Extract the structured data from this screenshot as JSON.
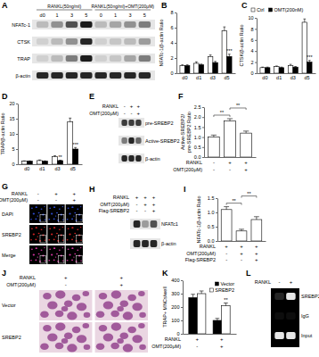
{
  "chart_data": [
    {
      "panel": "B",
      "type": "bar",
      "y_label": "NFATc-1/β-actin Ratio",
      "categories": [
        "d0",
        "d1",
        "d3",
        "d5"
      ],
      "series": [
        {
          "color": "#ffffff",
          "values": [
            1,
            1.3,
            2.2,
            5.6
          ],
          "errors": [
            0.1,
            0.2,
            0.2,
            0.5
          ]
        },
        {
          "color": "#000000",
          "values": [
            1,
            1.1,
            1.4,
            2.2
          ],
          "errors": [
            0.1,
            0.1,
            0.15,
            0.3
          ],
          "annotations": [
            null,
            null,
            null,
            "***"
          ]
        }
      ],
      "ylim": [
        0,
        8
      ],
      "yticks": [
        0,
        2,
        4,
        6,
        8
      ]
    },
    {
      "panel": "C",
      "type": "bar",
      "y_label": "CTSK/β-actin Ratio",
      "categories": [
        "d0",
        "d1",
        "d3",
        "d5"
      ],
      "series": [
        {
          "name": "Ctrl",
          "color": "#ffffff",
          "values": [
            1,
            1.2,
            1.4,
            9.2
          ],
          "errors": [
            0.1,
            0.1,
            0.2,
            0.6
          ]
        },
        {
          "name": "OMT(200nM)",
          "color": "#000000",
          "values": [
            1,
            1,
            1.1,
            2
          ],
          "errors": [
            0.1,
            0.1,
            0.1,
            0.3
          ],
          "annotations": [
            null,
            null,
            null,
            "***"
          ]
        }
      ],
      "ylim": [
        0,
        10
      ],
      "yticks": [
        0,
        2,
        4,
        6,
        8,
        10
      ],
      "legend": "top"
    },
    {
      "panel": "D",
      "type": "bar",
      "y_label": "TRAP/β-actin Ratio",
      "categories": [
        "d0",
        "d1",
        "d3",
        "d5"
      ],
      "series": [
        {
          "color": "#ffffff",
          "values": [
            1,
            1.2,
            2.5,
            14
          ],
          "errors": [
            0.1,
            0.2,
            0.3,
            1.2
          ]
        },
        {
          "color": "#000000",
          "values": [
            1,
            1,
            1.2,
            5
          ],
          "errors": [
            0.1,
            0.1,
            0.1,
            0.5
          ],
          "annotations": [
            null,
            null,
            "**",
            "***"
          ]
        }
      ],
      "ylim": [
        0,
        20
      ],
      "yticks": [
        0,
        5,
        10,
        15,
        20
      ]
    },
    {
      "panel": "F",
      "type": "bar",
      "y_label": [
        "Active-SREBP2/",
        "pre-SREBP2 Ratio"
      ],
      "categories": [
        null,
        null,
        null
      ],
      "values": [
        1,
        1.8,
        1.2
      ],
      "errors": [
        0.1,
        0.12,
        0.1
      ],
      "color": "#ffffff",
      "ylim": [
        0,
        2.5
      ],
      "yticks": [
        {
          "value": 0,
          "label": "0.0"
        },
        0.5,
        {
          "value": 1,
          "label": "1.0"
        },
        1.5,
        {
          "value": 2,
          "label": "2.0"
        },
        2.5
      ],
      "brackets": [
        {
          "from": 0,
          "to": 1,
          "label": "**"
        },
        {
          "from": 1,
          "to": 2,
          "label": "**"
        }
      ],
      "conditions": [
        {
          "label": "RANKL",
          "signs": [
            "-",
            "+",
            "+"
          ]
        },
        {
          "label": "OMT(200μM)",
          "signs": [
            "-",
            "-",
            "+"
          ]
        }
      ]
    },
    {
      "panel": "I",
      "type": "bar",
      "y_label": "NFATc-1/β-actin Ratio",
      "categories": [
        null,
        null,
        null
      ],
      "values": [
        1.1,
        0.35,
        0.75
      ],
      "errors": [
        0.1,
        0.06,
        0.1
      ],
      "color": "#ffffff",
      "ylim": [
        0,
        1.5
      ],
      "yticks": [
        {
          "value": 0,
          "label": "0.0"
        },
        0.5,
        {
          "value": 1,
          "label": "1.0"
        },
        1.5
      ],
      "brackets": [
        {
          "from": 0,
          "to": 1,
          "label": "**"
        },
        {
          "from": 1,
          "to": 2,
          "label": "**"
        }
      ],
      "conditions": [
        {
          "label": "RANKL",
          "signs": [
            "+",
            "+",
            "+"
          ]
        },
        {
          "label": "OMT(200μM)",
          "signs": [
            "-",
            "+",
            "+"
          ]
        },
        {
          "label": "Flag-SREBP2",
          "signs": [
            "-",
            "-",
            "+"
          ]
        }
      ]
    },
    {
      "panel": "K",
      "type": "bar",
      "y_label": "TRAP+ MNCs/well",
      "categories": [
        null,
        null
      ],
      "series": [
        {
          "name": "Vector",
          "color": "#000000",
          "values": [
            270,
            100
          ],
          "errors": [
            25,
            15
          ]
        },
        {
          "name": "SREBP2",
          "color": "#ffffff",
          "values": [
            300,
            210
          ],
          "errors": [
            20,
            20
          ],
          "annotations": [
            null,
            "**"
          ]
        }
      ],
      "ylim": [
        0,
        400
      ],
      "yticks": [
        0,
        100,
        200,
        300,
        400
      ],
      "legend": "top-right",
      "conditions": [
        {
          "label": "RANKL",
          "signs": [
            "+",
            "+"
          ]
        },
        {
          "label": "OMT(200μM)",
          "signs": [
            "-",
            "+"
          ]
        }
      ]
    }
  ],
  "blots": [
    {
      "panel": "A",
      "kind": "western",
      "column_headers": [
        {
          "label": "RANKL(50ng/ml)",
          "span": 4
        },
        {
          "label": "RANKL(50ng/ml)+OMT(200μM)",
          "span": 4
        }
      ],
      "lanes": [
        "d0",
        "1",
        "3",
        "5",
        "0",
        "1",
        "3",
        "5"
      ],
      "rows": [
        {
          "label": "NFATc-1",
          "bands": [
            0.2,
            0.4,
            0.7,
            0.95,
            0.2,
            0.3,
            0.4,
            0.5
          ]
        },
        {
          "label": "CTSK",
          "bands": [
            0.1,
            0.2,
            0.4,
            0.9,
            0.1,
            0.15,
            0.2,
            0.35
          ]
        },
        {
          "label": "TRAP",
          "bands": [
            0.1,
            0.2,
            0.5,
            0.95,
            0.1,
            0.15,
            0.3,
            0.5
          ]
        },
        {
          "label": "β-actin",
          "bands": [
            0.9,
            0.9,
            0.9,
            0.9,
            0.9,
            0.9,
            0.9,
            0.9
          ]
        }
      ]
    },
    {
      "panel": "E",
      "kind": "western",
      "conditions": [
        {
          "label": "RANKL",
          "signs": [
            "-",
            "+",
            "+"
          ]
        },
        {
          "label": "OMT(200μM)",
          "signs": [
            "-",
            "-",
            "+"
          ]
        }
      ],
      "rows": [
        {
          "label": "pre-SREBP2",
          "bands": [
            0.8,
            0.8,
            0.8
          ]
        },
        {
          "label": "Active-SREBP2",
          "bands": [
            0.5,
            0.9,
            0.6
          ]
        },
        {
          "label": "β-actin",
          "bands": [
            0.9,
            0.9,
            0.9
          ]
        }
      ]
    },
    {
      "panel": "H",
      "kind": "western",
      "conditions": [
        {
          "label": "RANKL",
          "signs": [
            "+",
            "+",
            "+"
          ]
        },
        {
          "label": "OMT(200μM)",
          "signs": [
            "-",
            "+",
            "+"
          ]
        },
        {
          "label": "Flag-SREBP2",
          "signs": [
            "-",
            "-",
            "+"
          ]
        }
      ],
      "rows": [
        {
          "label": "NFATc1",
          "bands": [
            0.9,
            0.35,
            0.7
          ]
        },
        {
          "label": "β-actin",
          "bands": [
            0.9,
            0.9,
            0.9
          ]
        }
      ]
    },
    {
      "panel": "L",
      "kind": "gel",
      "conditions": [
        {
          "label": "RANKL",
          "signs": [
            "-",
            "+"
          ]
        }
      ],
      "rows": [
        {
          "label": "SREBP2",
          "bands": [
            0.15,
            0.9
          ]
        },
        {
          "label": "IgG",
          "bands": [
            0.05,
            0.05
          ]
        },
        {
          "label": "Input",
          "bands": [
            0.9,
            0.9
          ]
        }
      ]
    }
  ],
  "images": [
    {
      "panel": "G",
      "conditions": [
        {
          "label": "RANKL",
          "signs": [
            "-",
            "+",
            "+"
          ]
        },
        {
          "label": "OMT(200μM)",
          "signs": [
            "-",
            "-",
            "+"
          ]
        }
      ],
      "rows": [
        {
          "label": "DAPI",
          "color": "#3a5cff"
        },
        {
          "label": "SREBP2",
          "color": "#ff2a2a"
        },
        {
          "label": "Merge",
          "color": "#ff40c0"
        }
      ]
    },
    {
      "panel": "J",
      "conditions": [
        {
          "label": "RANKL",
          "signs": [
            "+",
            "+"
          ]
        },
        {
          "label": "OMT(200μM)",
          "signs": [
            "-",
            "+"
          ]
        }
      ],
      "rows": [
        {
          "label": "Vector",
          "color": "#8e3b8a"
        },
        {
          "label": "SREBP2",
          "color": "#8e3b8a"
        }
      ]
    }
  ]
}
